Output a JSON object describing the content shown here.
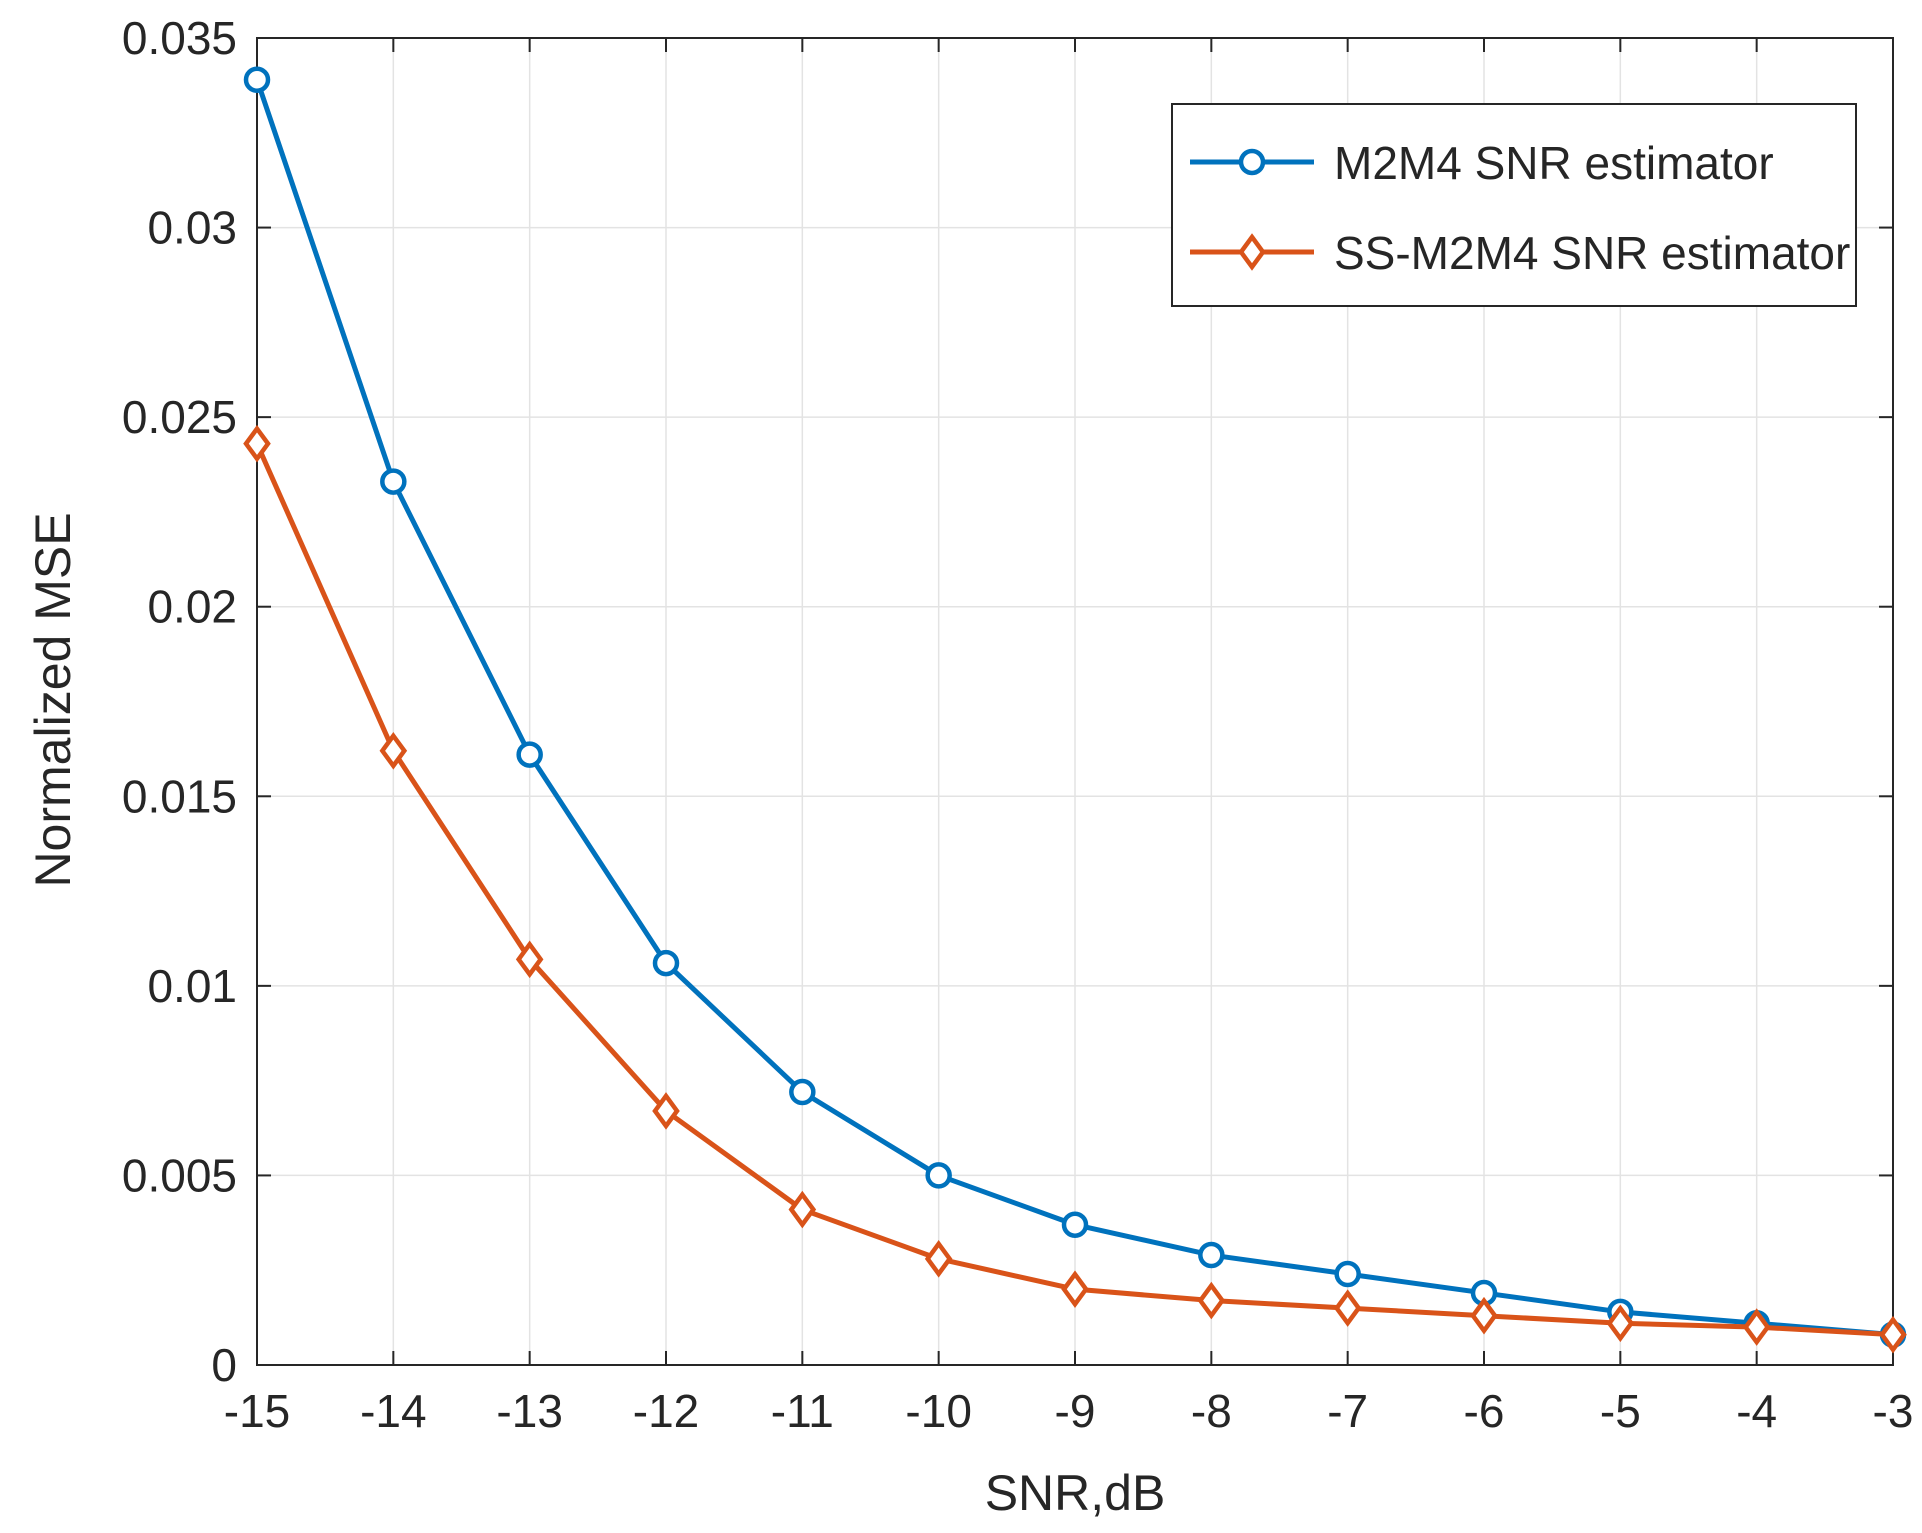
{
  "chart_data": {
    "type": "line",
    "title": "",
    "xlabel": "SNR,dB",
    "ylabel": "Normalized MSE",
    "xlim": [
      -15,
      -3
    ],
    "ylim": [
      0,
      0.035
    ],
    "grid": true,
    "legend_position": "top-right",
    "x": [
      -15,
      -14,
      -13,
      -12,
      -11,
      -10,
      -9,
      -8,
      -7,
      -6,
      -5,
      -4,
      -3
    ],
    "x_ticks": [
      {
        "value": -15,
        "label": "-15"
      },
      {
        "value": -14,
        "label": "-14"
      },
      {
        "value": -13,
        "label": "-13"
      },
      {
        "value": -12,
        "label": "-12"
      },
      {
        "value": -11,
        "label": "-11"
      },
      {
        "value": -10,
        "label": "-10"
      },
      {
        "value": -9,
        "label": "-9"
      },
      {
        "value": -8,
        "label": "-8"
      },
      {
        "value": -7,
        "label": "-7"
      },
      {
        "value": -6,
        "label": "-6"
      },
      {
        "value": -5,
        "label": "-5"
      },
      {
        "value": -4,
        "label": "-4"
      },
      {
        "value": -3,
        "label": "-3"
      }
    ],
    "y_ticks": [
      {
        "value": 0,
        "label": "0"
      },
      {
        "value": 0.005,
        "label": "0.005"
      },
      {
        "value": 0.01,
        "label": "0.01"
      },
      {
        "value": 0.015,
        "label": "0.015"
      },
      {
        "value": 0.02,
        "label": "0.02"
      },
      {
        "value": 0.025,
        "label": "0.025"
      },
      {
        "value": 0.03,
        "label": "0.03"
      },
      {
        "value": 0.035,
        "label": "0.035"
      }
    ],
    "series": [
      {
        "name": "M2M4 SNR estimator",
        "color": "#0072BD",
        "marker": "circle",
        "values": [
          0.0339,
          0.0233,
          0.0161,
          0.0106,
          0.0072,
          0.005,
          0.0037,
          0.0029,
          0.0024,
          0.0019,
          0.0014,
          0.0011,
          0.0008
        ]
      },
      {
        "name": "SS-M2M4 SNR estimator",
        "color": "#D95319",
        "marker": "diamond",
        "values": [
          0.0243,
          0.0162,
          0.0107,
          0.0067,
          0.0041,
          0.0028,
          0.002,
          0.0017,
          0.0015,
          0.0013,
          0.0011,
          0.001,
          0.0008
        ]
      }
    ]
  }
}
